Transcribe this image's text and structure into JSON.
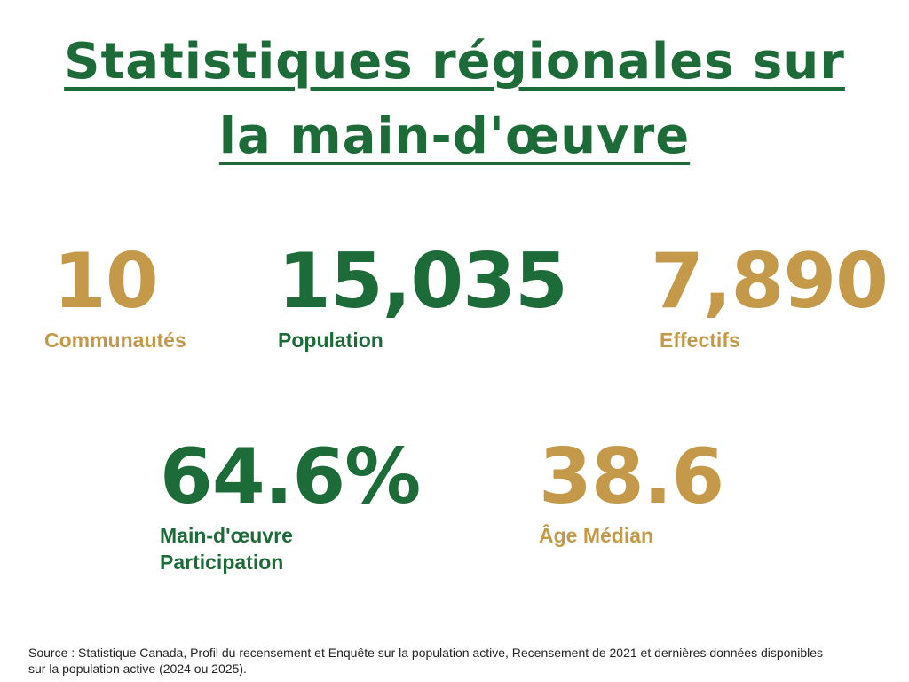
{
  "header": {
    "title_line1": "Statistiques régionales sur",
    "title_line2": "la main-d'œuvre"
  },
  "stats": {
    "communautes": {
      "value": "10",
      "label": "Communautés"
    },
    "population": {
      "value": "15,035",
      "label": "Population"
    },
    "effectifs": {
      "value": "7,890",
      "label": "Effectifs"
    },
    "participation": {
      "value": "64.6%",
      "label_line1": "Main-d'œuvre",
      "label_line2": "Participation"
    },
    "age": {
      "value": "38.6",
      "label": "Âge Médian"
    }
  },
  "footer": {
    "source": "Source : Statistique Canada, Profil du recensement et Enquête sur la population active, Recensement de 2021 et dernières données disponibles sur la population active (2024 ou 2025)."
  },
  "colors": {
    "green": "#1e6b3a",
    "gold": "#c49a4a"
  }
}
